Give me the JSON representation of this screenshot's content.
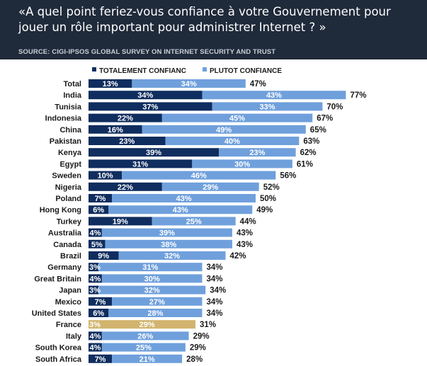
{
  "header": {
    "title": "«A quel point feriez-vous confiance à votre Gouvernement pour jouer un rôle important pour administrer Internet ? »",
    "source": "SOURCE: CIGI-IPSOS GLOBAL SURVEY ON INTERNET SECURITY AND TRUST"
  },
  "colors": {
    "header_bg": "#1f2a3a",
    "dark_series": "#0f2d5e",
    "light_series": "#6fa0dc",
    "highlight": "#d2b46e"
  },
  "chart_data": {
    "type": "bar",
    "orientation": "horizontal",
    "stacked": true,
    "legend_position": "top",
    "grid": false,
    "xlim": [
      0,
      100
    ],
    "highlight_category": "France",
    "categories": [
      "Total",
      "India",
      "Tunisia",
      "Indonesia",
      "China",
      "Pakistan",
      "Kenya",
      "Egypt",
      "Sweden",
      "Nigeria",
      "Poland",
      "Hong Kong",
      "Turkey",
      "Australia",
      "Canada",
      "Brazil",
      "Germany",
      "Great Britain",
      "Japan",
      "Mexico",
      "United States",
      "France",
      "Italy",
      "South Korea",
      "South Africa"
    ],
    "series": [
      {
        "name": "TOTALEMENT CONFIANC",
        "values": [
          13,
          34,
          37,
          22,
          16,
          23,
          39,
          31,
          10,
          22,
          7,
          6,
          19,
          4,
          5,
          9,
          3,
          4,
          3,
          7,
          6,
          3,
          4,
          4,
          7
        ]
      },
      {
        "name": "PLUTOT CONFIANCE",
        "values": [
          34,
          43,
          33,
          45,
          49,
          40,
          23,
          30,
          46,
          29,
          43,
          43,
          25,
          39,
          38,
          32,
          31,
          30,
          32,
          27,
          28,
          29,
          26,
          25,
          21
        ]
      }
    ],
    "totals": [
      47,
      77,
      70,
      67,
      65,
      63,
      62,
      61,
      56,
      52,
      50,
      49,
      44,
      43,
      43,
      42,
      34,
      34,
      34,
      34,
      34,
      31,
      29,
      29,
      28
    ],
    "value_labels": {
      "dark": [
        "13%",
        "34%",
        "37%",
        "22%",
        "16%",
        "23%",
        "39%",
        "31%",
        "10%",
        "22%",
        "7%",
        "6%",
        "19%",
        "4%",
        "5%",
        "9%",
        "3%",
        "4%",
        "3%",
        "7%",
        "6%",
        "3%",
        "4%",
        "4%",
        "7%"
      ],
      "light": [
        "34%",
        "43%",
        "33%",
        "45%",
        "49%",
        "40%",
        "23%",
        "30%",
        "46%",
        "29%",
        "43%",
        "43%",
        "25%",
        "39%",
        "38%",
        "32%",
        "31%",
        "30%",
        "32%",
        "27%",
        "28%",
        "29%",
        "26%",
        "25%",
        "21%"
      ],
      "total": [
        "47%",
        "77%",
        "70%",
        "67%",
        "65%",
        "63%",
        "62%",
        "61%",
        "56%",
        "52%",
        "50%",
        "49%",
        "44%",
        "43%",
        "43%",
        "42%",
        "34%",
        "34%",
        "34%",
        "34%",
        "34%",
        "31%",
        "29%",
        "29%",
        "28%"
      ]
    }
  }
}
